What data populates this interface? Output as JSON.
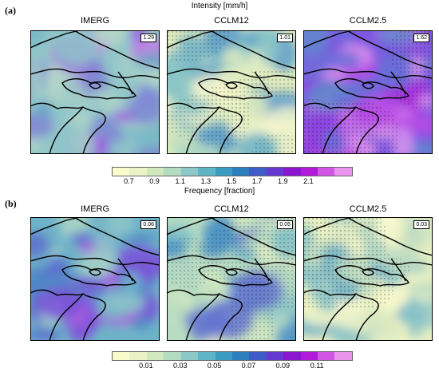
{
  "panel_a": {
    "label": "(a)",
    "title": "Intensity [mm/h]",
    "maps": [
      {
        "name": "IMERG",
        "value": "1.29",
        "palette": [
          "#b8d8c8",
          "#a5cfc8",
          "#8fc5c9",
          "#78b7c7",
          "#6aa7c6",
          "#7e86d5",
          "#9d5de0",
          "#c37ae8"
        ],
        "stipple": false
      },
      {
        "name": "CCLM12",
        "value": "1.01",
        "palette": [
          "#f7f7cc",
          "#eef2c4",
          "#dfecc0",
          "#c7e2bf",
          "#acd6c2",
          "#8ec7c7",
          "#6fb3c7",
          "#5e9ec9"
        ],
        "stipple": true
      },
      {
        "name": "CCLM2.5",
        "value": "1.62",
        "palette": [
          "#5f88cc",
          "#6a6fd8",
          "#7c58e0",
          "#8f3fe4",
          "#a92be0",
          "#b94be6",
          "#c96fea",
          "#d792ee"
        ],
        "stipple": true
      }
    ],
    "colorbar": {
      "colors": [
        "#fafacc",
        "#eaf3c5",
        "#d2e9c0",
        "#b2dbc1",
        "#8cc8c8",
        "#5fb4c6",
        "#3a9cc1",
        "#2b7fbc",
        "#3e5cc8",
        "#6538d0",
        "#8a16cf",
        "#b01ad8",
        "#d155e3",
        "#e995ee"
      ],
      "ticks": [
        "0.7",
        "0.9",
        "1.1",
        "1.3",
        "1.5",
        "1.7",
        "1.9",
        "2.1"
      ]
    }
  },
  "panel_b": {
    "label": "(b)",
    "title": "Frequency [fraction]",
    "maps": [
      {
        "name": "IMERG",
        "value": "0.06",
        "palette": [
          "#a8d3c6",
          "#8ec6c9",
          "#6fb3c8",
          "#5aa0c8",
          "#4f87c5",
          "#5e70cf",
          "#7c52d9",
          "#b05fe1"
        ],
        "stipple": false
      },
      {
        "name": "CCLM12",
        "value": "0.05",
        "palette": [
          "#e6f1c4",
          "#d2e9c1",
          "#b8dcc2",
          "#9dd0c5",
          "#7fbfc8",
          "#61acc8",
          "#4e94c6",
          "#6574d0"
        ],
        "stipple": true
      },
      {
        "name": "CCLM2.5",
        "value": "0.03",
        "palette": [
          "#fbfbd2",
          "#f4f6c8",
          "#e8f0c3",
          "#d7e8c1",
          "#c1ddc1",
          "#a8d1c4",
          "#8cc4c8",
          "#6fb0c7"
        ],
        "stipple": true
      }
    ],
    "colorbar": {
      "colors": [
        "#fafacc",
        "#eaf3c5",
        "#d2e9c0",
        "#b2dbc1",
        "#8cc8c8",
        "#5fb4c6",
        "#3a9cc1",
        "#2b7fbc",
        "#3e5cc8",
        "#6538d0",
        "#8a16cf",
        "#b01ad8",
        "#d155e3",
        "#e995ee"
      ],
      "ticks": [
        "0.01",
        "0.03",
        "0.05",
        "0.07",
        "0.09",
        "0.11"
      ]
    }
  }
}
